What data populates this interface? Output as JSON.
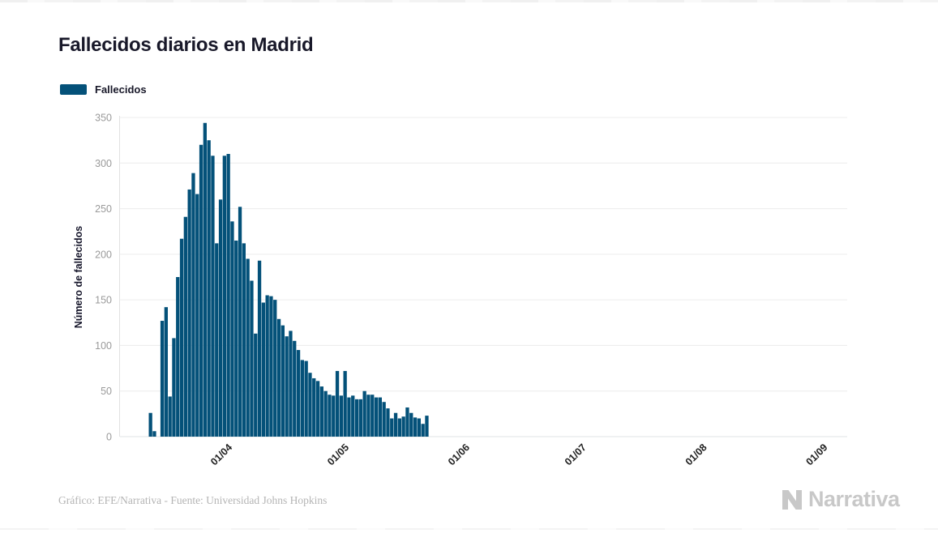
{
  "title": "Fallecidos diarios en Madrid",
  "legend": {
    "label": "Fallecidos",
    "color": "#045179"
  },
  "footer": {
    "credit": "Gráfico: EFE/Narrativa - Fuente: Universidad Johns Hopkins"
  },
  "logo": {
    "text": "Narrativa"
  },
  "colors": {
    "bar": "#045179",
    "grid": "#ececec",
    "axis_line": "#e2e2e2",
    "baseline": "#dfe3e6",
    "y_tick": "#9a9a9a",
    "x_tick": "#1f1f1f",
    "title": "#181829",
    "footer": "#b4b4b4",
    "logo": "#c8c8c8"
  },
  "chart_data": {
    "type": "bar",
    "title": "Fallecidos diarios en Madrid",
    "series_name": "Fallecidos",
    "xlabel": "",
    "ylabel": "Número de fallecidos",
    "ylim": [
      0,
      350
    ],
    "grid": true,
    "legend_position": "top-left",
    "y_ticks": [
      0,
      50,
      100,
      150,
      200,
      250,
      300,
      350
    ],
    "x_tick_labels": [
      "01/04",
      "01/05",
      "01/06",
      "01/07",
      "01/08",
      "01/09"
    ],
    "x_tick_indices": [
      18,
      48,
      79,
      109,
      140,
      171
    ],
    "x": [
      "14/03",
      "15/03",
      "16/03",
      "17/03",
      "18/03",
      "19/03",
      "20/03",
      "21/03",
      "22/03",
      "23/03",
      "24/03",
      "25/03",
      "26/03",
      "27/03",
      "28/03",
      "29/03",
      "30/03",
      "31/03",
      "01/04",
      "02/04",
      "03/04",
      "04/04",
      "05/04",
      "06/04",
      "07/04",
      "08/04",
      "09/04",
      "10/04",
      "11/04",
      "12/04",
      "13/04",
      "14/04",
      "15/04",
      "16/04",
      "17/04",
      "18/04",
      "19/04",
      "20/04",
      "21/04",
      "22/04",
      "23/04",
      "24/04",
      "25/04",
      "26/04",
      "27/04",
      "28/04",
      "29/04",
      "30/04",
      "01/05",
      "02/05",
      "03/05",
      "04/05",
      "05/05",
      "06/05",
      "07/05",
      "08/05",
      "09/05",
      "10/05",
      "11/05",
      "12/05",
      "13/05",
      "14/05",
      "15/05",
      "16/05",
      "17/05",
      "18/05",
      "19/05",
      "20/05",
      "21/05",
      "22/05",
      "23/05",
      "24/05"
    ],
    "values": [
      26,
      6,
      0,
      127,
      142,
      44,
      108,
      175,
      217,
      241,
      271,
      289,
      266,
      320,
      344,
      325,
      308,
      212,
      260,
      308,
      310,
      236,
      215,
      252,
      212,
      195,
      171,
      113,
      193,
      147,
      155,
      154,
      150,
      129,
      122,
      110,
      116,
      105,
      95,
      84,
      83,
      70,
      64,
      61,
      55,
      50,
      46,
      45,
      72,
      45,
      72,
      43,
      45,
      41,
      41,
      50,
      46,
      46,
      43,
      43,
      38,
      31,
      20,
      26,
      20,
      22,
      32,
      26,
      21,
      20,
      14,
      23
    ]
  }
}
